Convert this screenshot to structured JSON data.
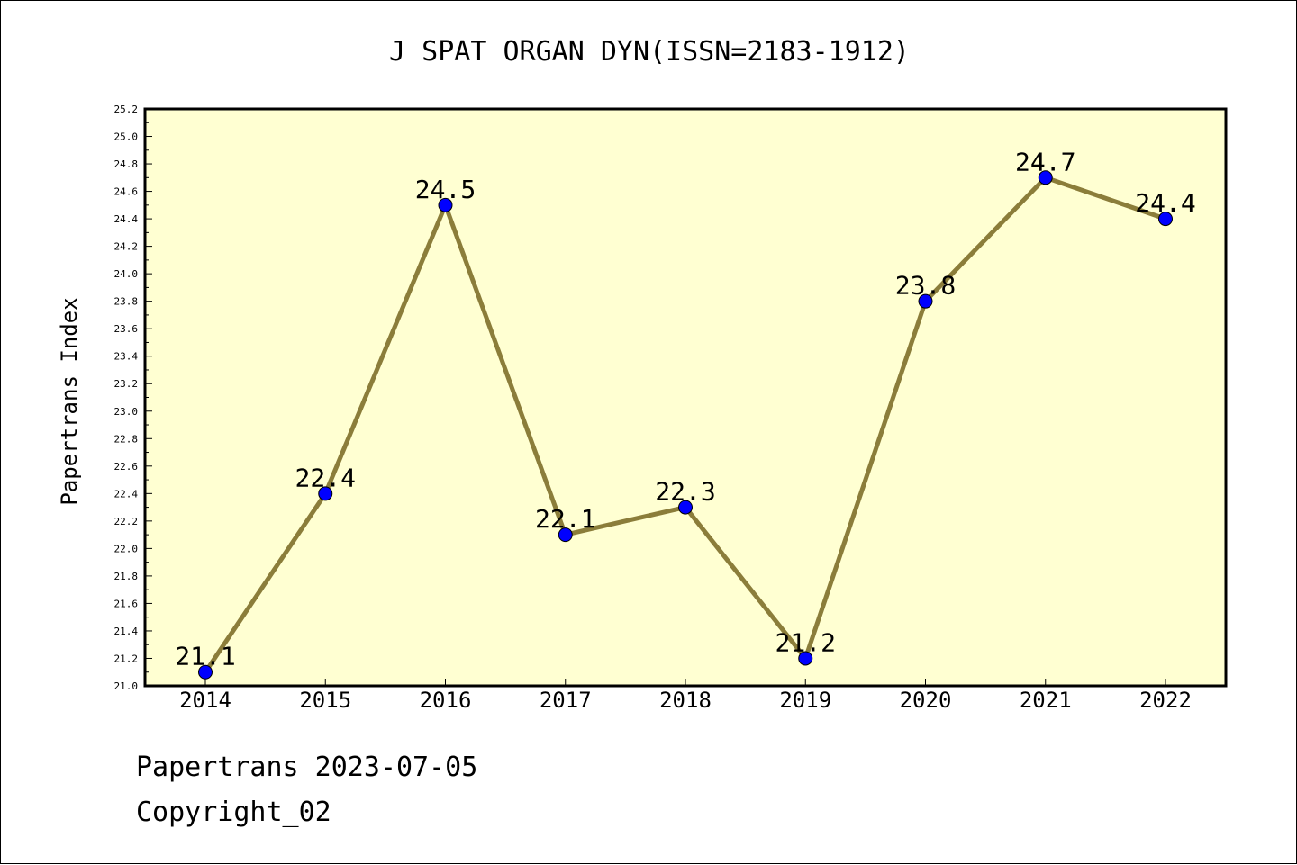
{
  "chart_data": {
    "type": "line",
    "title": "J SPAT ORGAN DYN(ISSN=2183-1912)",
    "xlabel": "",
    "ylabel": "Papertrans Index",
    "categories": [
      "2014",
      "2015",
      "2016",
      "2017",
      "2018",
      "2019",
      "2020",
      "2021",
      "2022"
    ],
    "series": [
      {
        "values": [
          21.1,
          22.4,
          24.5,
          22.1,
          22.3,
          21.2,
          23.8,
          24.7,
          24.4
        ]
      }
    ],
    "data_labels": [
      "21.1",
      "22.4",
      "24.5",
      "22.1",
      "22.3",
      "21.2",
      "23.8",
      "24.7",
      "24.4"
    ],
    "ylim": [
      21.0,
      25.2
    ],
    "y_ticks": [
      "21.0",
      "21.2",
      "21.4",
      "21.6",
      "21.8",
      "22.0",
      "22.2",
      "22.4",
      "22.6",
      "22.8",
      "23.0",
      "23.2",
      "23.4",
      "23.6",
      "23.8",
      "24.0",
      "24.2",
      "24.4",
      "24.6",
      "24.8",
      "25.0",
      "25.2"
    ],
    "grid": false,
    "legend": "none",
    "colors": {
      "plot_background": "#ffffd2",
      "line": "#8b7d3a",
      "marker": "#0000ff"
    }
  },
  "footer": {
    "line1": "Papertrans 2023-07-05",
    "line2": "Copyright_02"
  }
}
